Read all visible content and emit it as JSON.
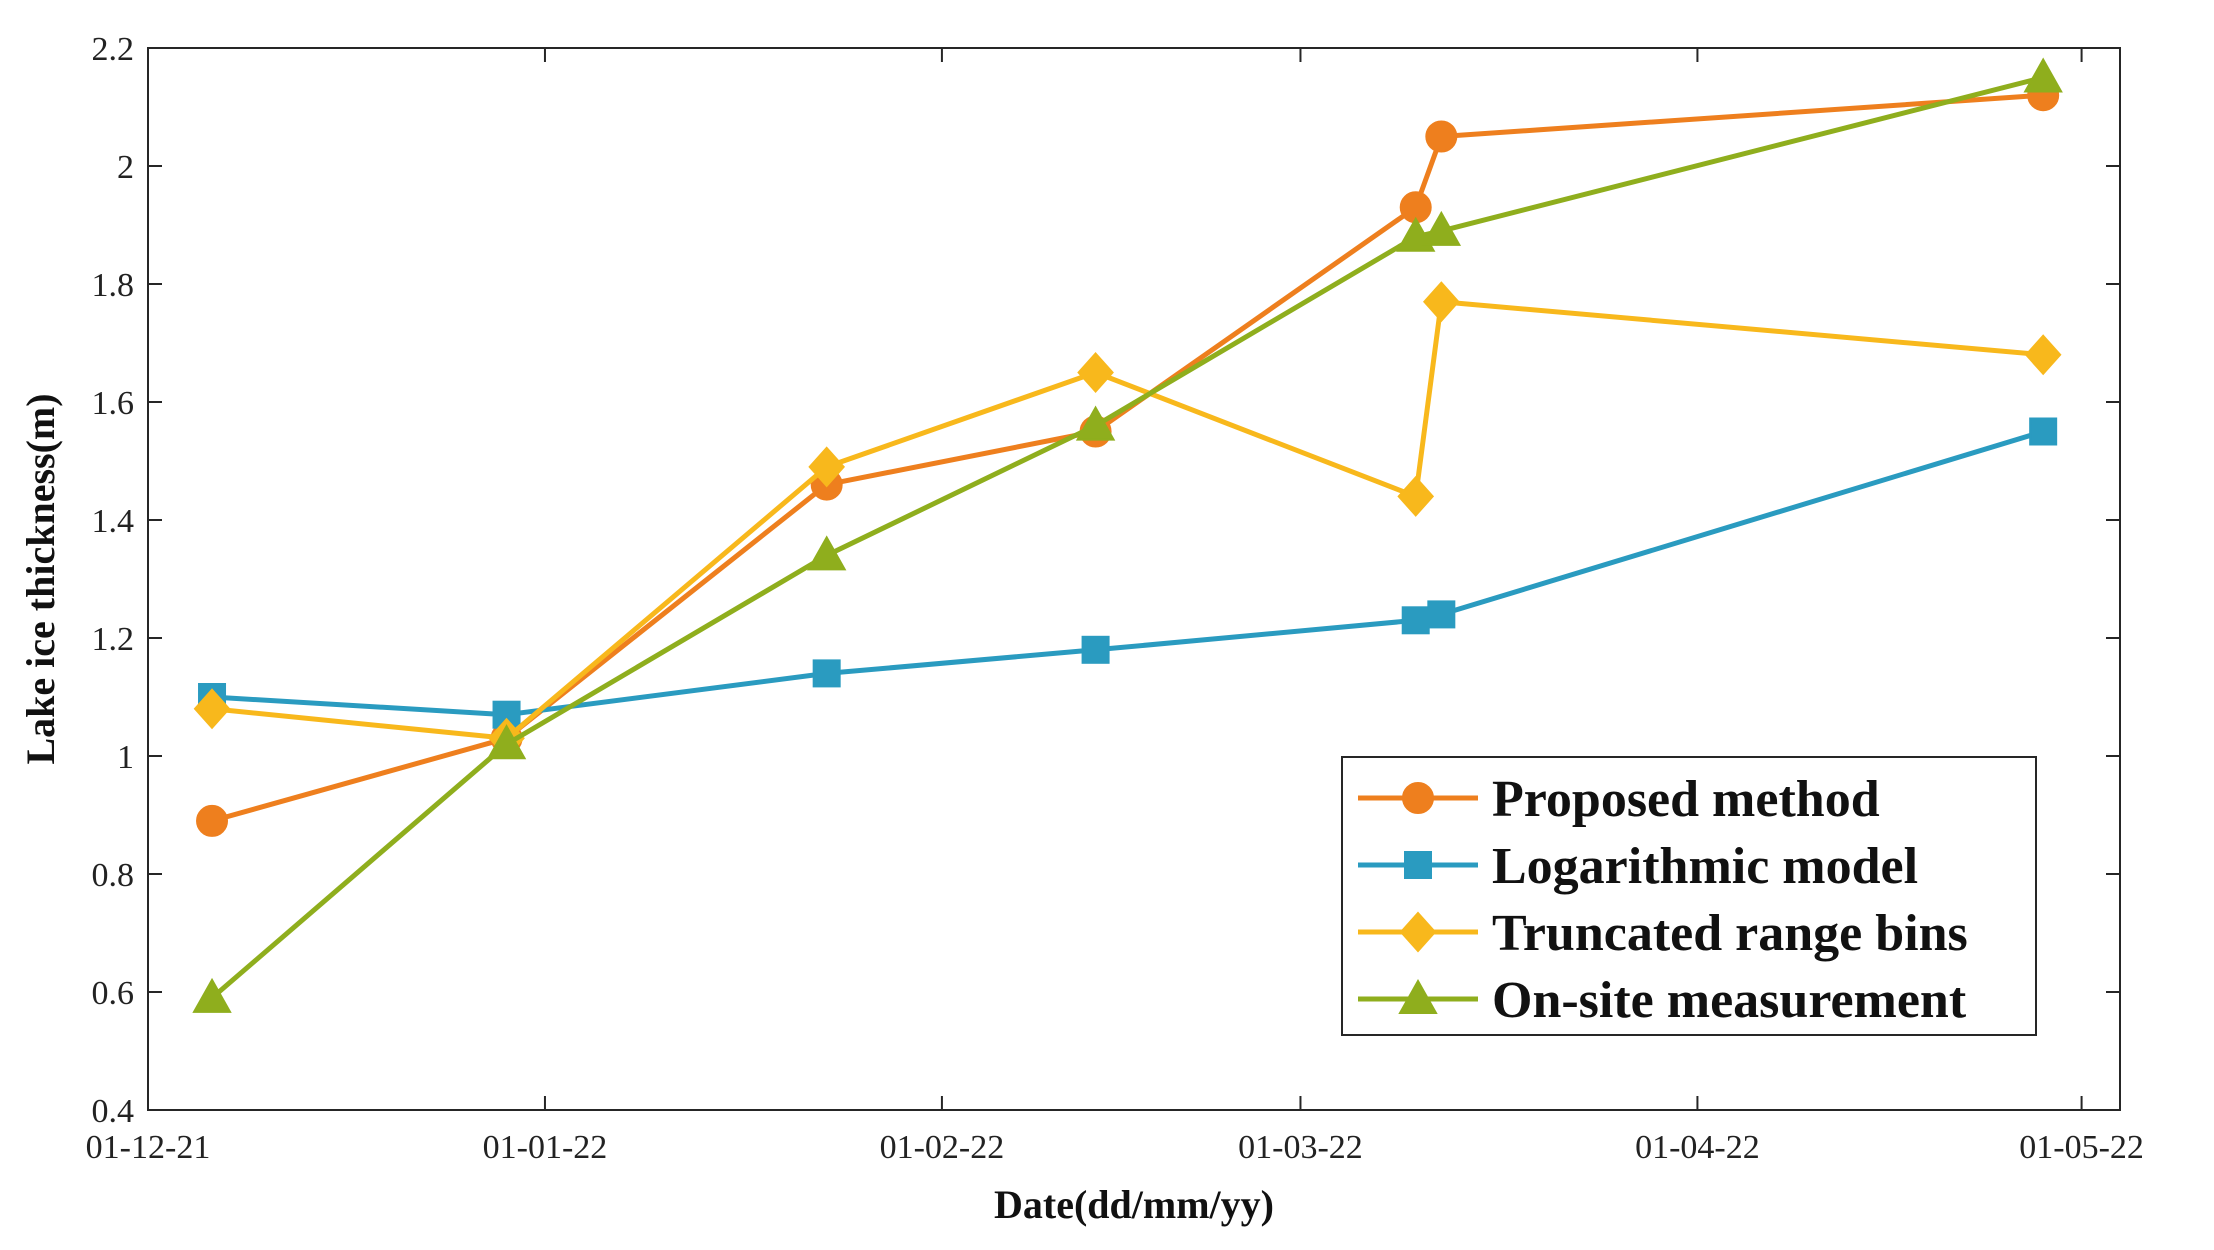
{
  "chart_data": {
    "type": "line",
    "xlabel": "Date(dd/mm/yy)",
    "ylabel": "Lake ice thickness(m)",
    "xlim": [
      -5,
      149
    ],
    "ylim": [
      0.4,
      2.2
    ],
    "x_ticks": [
      {
        "value": -5,
        "label": "01-12-21"
      },
      {
        "value": 26,
        "label": "01-01-22"
      },
      {
        "value": 57,
        "label": "01-02-22"
      },
      {
        "value": 85,
        "label": "01-03-22"
      },
      {
        "value": 116,
        "label": "01-04-22"
      },
      {
        "value": 146,
        "label": "01-05-22"
      }
    ],
    "y_ticks": [
      0.4,
      0.6,
      0.8,
      1,
      1.2,
      1.4,
      1.6,
      1.8,
      2,
      2.2
    ],
    "x": [
      0,
      23,
      48,
      69,
      94,
      96,
      143
    ],
    "legend_position": "bottom-right",
    "series": [
      {
        "name": "Proposed method",
        "color": "#ee7f1e",
        "marker": "circle",
        "values": [
          0.89,
          1.03,
          1.46,
          1.55,
          1.93,
          2.05,
          2.12
        ]
      },
      {
        "name": "Logarithmic model",
        "color": "#2a9bc0",
        "marker": "square",
        "values": [
          1.1,
          1.07,
          1.14,
          1.18,
          1.23,
          1.24,
          1.55
        ]
      },
      {
        "name": "Truncated range bins",
        "color": "#f8b81c",
        "marker": "diamond",
        "values": [
          1.08,
          1.03,
          1.49,
          1.65,
          1.44,
          1.77,
          1.68
        ]
      },
      {
        "name": "On-site measurement",
        "color": "#8fae1d",
        "marker": "triangle",
        "values": [
          0.59,
          1.02,
          1.34,
          1.56,
          1.88,
          1.89,
          2.15
        ]
      }
    ]
  }
}
